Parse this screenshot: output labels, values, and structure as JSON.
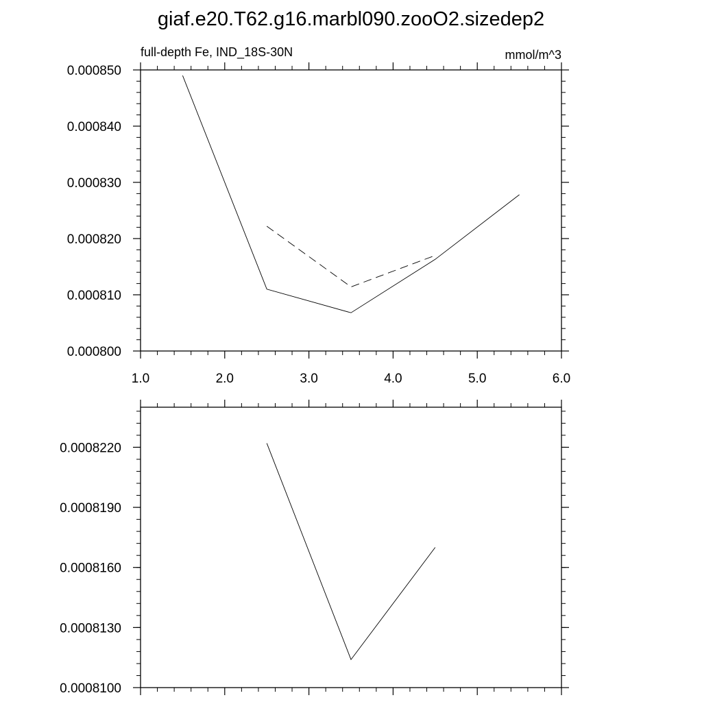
{
  "title": "giaf.e20.T62.g16.marbl090.zooO2.sizedep2",
  "chart_data": [
    {
      "type": "line",
      "subtitle_left": "full-depth Fe, IND_18S-30N",
      "subtitle_right": "mmol/m^3",
      "xlim": [
        1.0,
        6.0
      ],
      "ylim": [
        0.0008,
        0.00085
      ],
      "xticks": [
        1.0,
        2.0,
        3.0,
        4.0,
        5.0,
        6.0
      ],
      "xtick_labels": [
        "1.0",
        "2.0",
        "3.0",
        "4.0",
        "5.0",
        "6.0"
      ],
      "yticks": [
        0.0008,
        0.00081,
        0.00082,
        0.00083,
        0.00084,
        0.00085
      ],
      "ytick_labels": [
        "0.000800",
        "0.000810",
        "0.000820",
        "0.000830",
        "0.000840",
        "0.000850"
      ],
      "series": [
        {
          "style": "solid",
          "x": [
            1.5,
            2.5,
            3.5,
            4.5,
            5.5
          ],
          "y": [
            0.000849,
            0.000811,
            0.0008068,
            0.0008163,
            0.0008278
          ]
        },
        {
          "style": "dashed",
          "x": [
            2.5,
            3.5,
            4.5
          ],
          "y": [
            0.0008222,
            0.0008114,
            0.000817
          ]
        }
      ]
    },
    {
      "type": "line",
      "xlim": [
        1.0,
        6.0
      ],
      "ylim": [
        0.00081,
        0.000824
      ],
      "xticks": [
        1.0,
        2.0,
        3.0,
        4.0,
        5.0,
        6.0
      ],
      "yticks": [
        0.00081,
        0.000813,
        0.000816,
        0.000819,
        0.000822
      ],
      "ytick_labels": [
        "0.0008100",
        "0.0008130",
        "0.0008160",
        "0.0008190",
        "0.0008220"
      ],
      "series": [
        {
          "style": "solid",
          "x": [
            2.5,
            3.5,
            4.5
          ],
          "y": [
            0.0008222,
            0.0008114,
            0.000817
          ]
        }
      ]
    }
  ]
}
